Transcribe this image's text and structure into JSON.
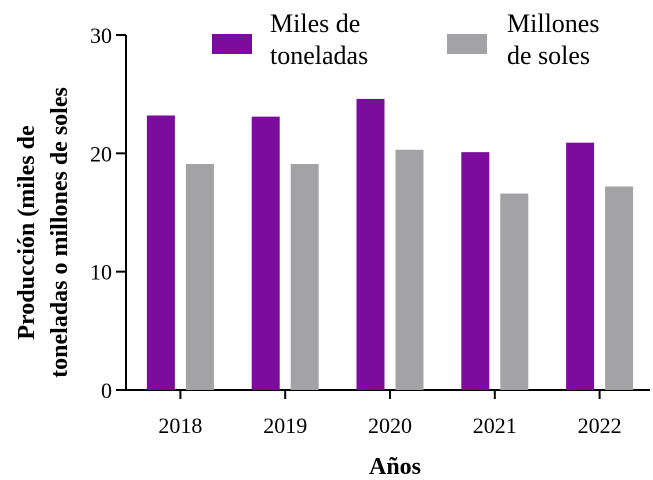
{
  "chart_data": {
    "type": "bar",
    "categories": [
      "2018",
      "2019",
      "2020",
      "2021",
      "2022"
    ],
    "series": [
      {
        "name": "Miles de toneladas",
        "values": [
          23.2,
          23.1,
          24.6,
          20.1,
          20.9
        ],
        "color": "#7b0c9e"
      },
      {
        "name": "Millones de soles",
        "values": [
          19.1,
          19.1,
          20.3,
          16.6,
          17.2
        ],
        "color": "#a3a3a6"
      }
    ],
    "xlabel": "Años",
    "ylabel_lines": [
      "Producción (miles de",
      "toneladas o millones de soles"
    ],
    "ylim": [
      0,
      30
    ],
    "yticks": [
      0,
      10,
      20,
      30
    ],
    "grid": false,
    "legend_position": "top",
    "legend_labels": [
      [
        "Miles de",
        "toneladas"
      ],
      [
        "Millones",
        "de soles"
      ]
    ]
  }
}
